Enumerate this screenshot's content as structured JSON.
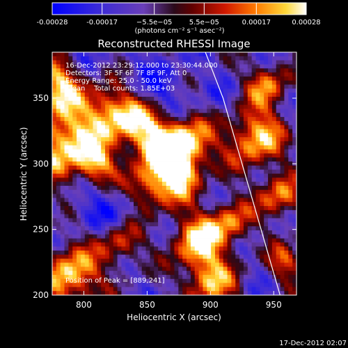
{
  "chart_data": {
    "type": "heatmap",
    "title": "Reconstructed RHESSI Image",
    "xlabel": "Heliocentric X (arcsec)",
    "ylabel": "Heliocentric Y (arcsec)",
    "xlim": [
      775,
      968
    ],
    "ylim": [
      200,
      385
    ],
    "x_ticks": [
      800,
      850,
      900,
      950
    ],
    "y_ticks": [
      200,
      250,
      300,
      350
    ],
    "colorbar": {
      "min": -0.00028,
      "max": 0.00028,
      "tick_values": [
        -0.00028,
        -0.00017,
        -5.5e-05,
        5.5e-05,
        0.00017,
        0.00028
      ],
      "tick_labels": [
        "-0.00028",
        "-0.00017",
        "−5.5e−05",
        "5.5e−05",
        "0.00017",
        "0.00028"
      ],
      "units": "(photons cm⁻² s⁻¹ asec⁻²)"
    },
    "annotations": [
      "16-Dec-2012 23:29:12.000 to 23:30:44.000",
      "Detectors: 3F 5F 6F 7F 8F 9F, Att 0",
      "Energy Range: 25.0 - 50.0 keV",
      "Clean    Total counts: 1.85E+03"
    ],
    "peak_label": "Position of Peak = [889,241]",
    "peak_position": [
      889,
      241
    ],
    "limb_curve": [
      [
        896,
        385
      ],
      [
        910,
        350
      ],
      [
        925,
        300
      ],
      [
        940,
        250
      ],
      [
        955,
        200
      ]
    ],
    "hot_spots": [
      {
        "x": 785,
        "y": 315,
        "r": 20,
        "v": 0.00028
      },
      {
        "x": 780,
        "y": 360,
        "r": 14,
        "v": 0.00022
      },
      {
        "x": 790,
        "y": 215,
        "r": 16,
        "v": 0.00026
      },
      {
        "x": 820,
        "y": 340,
        "r": 14,
        "v": 0.00018
      },
      {
        "x": 845,
        "y": 330,
        "r": 16,
        "v": 0.0002
      },
      {
        "x": 850,
        "y": 280,
        "r": 14,
        "v": 0.0002
      },
      {
        "x": 865,
        "y": 310,
        "r": 14,
        "v": 0.00016
      },
      {
        "x": 875,
        "y": 290,
        "r": 12,
        "v": 0.00018
      },
      {
        "x": 880,
        "y": 315,
        "r": 15,
        "v": 0.00022
      },
      {
        "x": 889,
        "y": 241,
        "r": 14,
        "v": 0.00026
      },
      {
        "x": 900,
        "y": 210,
        "r": 14,
        "v": 0.0002
      },
      {
        "x": 915,
        "y": 255,
        "r": 12,
        "v": 0.00016
      },
      {
        "x": 935,
        "y": 320,
        "r": 16,
        "v": 0.00024
      },
      {
        "x": 955,
        "y": 275,
        "r": 12,
        "v": 0.00018
      },
      {
        "x": 945,
        "y": 360,
        "r": 12,
        "v": 0.00016
      },
      {
        "x": 830,
        "y": 240,
        "r": 12,
        "v": 0.00014
      },
      {
        "x": 810,
        "y": 300,
        "r": 10,
        "v": 0.00014
      },
      {
        "x": 960,
        "y": 225,
        "r": 10,
        "v": 0.00012
      }
    ],
    "cold_spots": [
      {
        "x": 855,
        "y": 355,
        "r": 18,
        "v": -0.00022
      },
      {
        "x": 835,
        "y": 265,
        "r": 16,
        "v": -0.00024
      },
      {
        "x": 800,
        "y": 270,
        "r": 14,
        "v": -0.00018
      },
      {
        "x": 870,
        "y": 345,
        "r": 12,
        "v": -0.00016
      },
      {
        "x": 920,
        "y": 350,
        "r": 14,
        "v": -0.00014
      },
      {
        "x": 800,
        "y": 380,
        "r": 12,
        "v": -0.00014
      },
      {
        "x": 880,
        "y": 230,
        "r": 10,
        "v": -0.00012
      },
      {
        "x": 960,
        "y": 300,
        "r": 12,
        "v": -0.00012
      }
    ],
    "footer_timestamp": "17-Dec-2012 02:07"
  }
}
